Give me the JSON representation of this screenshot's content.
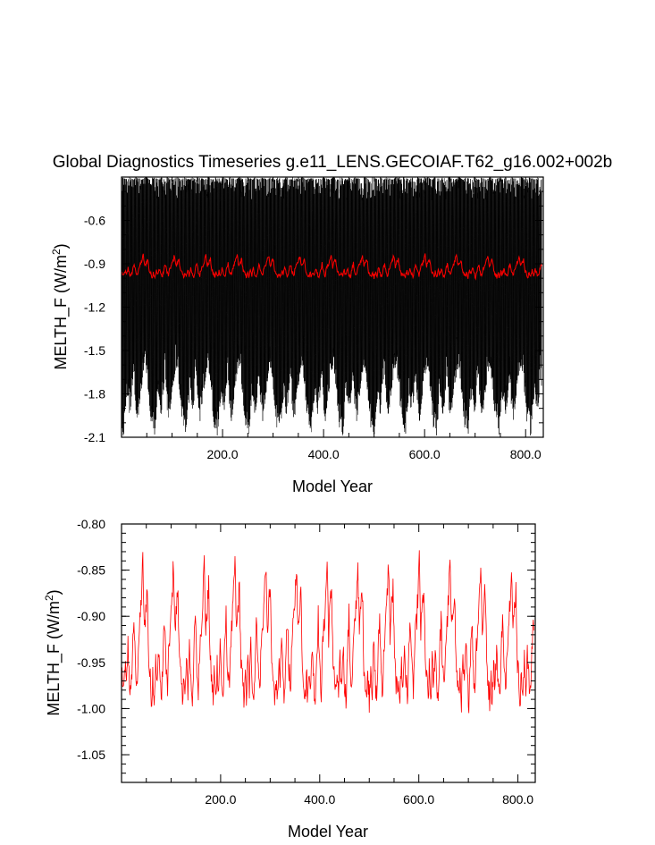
{
  "chart_data": [
    {
      "type": "line",
      "title": "Global Diagnostics Timeseries g.e11_LENS.GECOIAF.T62_g16.002+002b",
      "xlabel": "Model Year",
      "ylabel_main": "MELTH_F (W/m",
      "ylabel_sup": "2",
      "ylabel_close": ")",
      "xlim": [
        0,
        835
      ],
      "ylim": [
        -2.1,
        -0.3
      ],
      "xticks": [
        200,
        400,
        600,
        800
      ],
      "xtick_labels": [
        "200.0",
        "400.0",
        "600.0",
        "800.0"
      ],
      "yticks": [
        -2.1,
        -1.8,
        -1.5,
        -1.2,
        -0.9,
        -0.6
      ],
      "ytick_labels": [
        "-2.1",
        "-1.8",
        "-1.5",
        "-1.2",
        "-0.9",
        "-0.6"
      ],
      "grid": false,
      "cycle_years": 62,
      "series": [
        {
          "color": "#000000",
          "description_of_values": "monthly values, repeating 62-year forcing cycle",
          "cycle_profile_x": [
            0,
            4,
            8,
            12,
            16,
            20,
            24,
            28,
            32,
            36,
            40,
            44,
            48,
            52,
            56,
            60,
            62
          ],
          "cycle_profile_min": [
            -1.95,
            -2.05,
            -1.85,
            -1.75,
            -1.9,
            -1.8,
            -1.6,
            -1.85,
            -1.95,
            -1.8,
            -1.7,
            -1.6,
            -1.55,
            -1.7,
            -1.85,
            -2.0,
            -1.95
          ],
          "cycle_profile_max": [
            -0.32,
            -0.33,
            -0.33,
            -0.34,
            -0.32,
            -0.33,
            -0.34,
            -0.32,
            -0.33,
            -0.33,
            -0.34,
            -0.33,
            -0.32,
            -0.33,
            -0.34,
            -0.33,
            -0.32
          ]
        },
        {
          "color": "#ff0000",
          "description_of_values": "annual means, repeating 62-year forcing cycle",
          "cycle_profile_x": [
            0,
            3,
            6,
            9,
            12,
            15,
            18,
            21,
            24,
            27,
            30,
            33,
            36,
            39,
            42,
            45,
            48,
            51,
            54,
            57,
            60,
            62
          ],
          "cycle_profile_y": [
            -0.96,
            -0.99,
            -0.95,
            -0.98,
            -0.93,
            -0.97,
            -0.99,
            -0.94,
            -0.9,
            -0.96,
            -0.98,
            -0.93,
            -0.91,
            -0.88,
            -0.84,
            -0.92,
            -0.89,
            -0.87,
            -0.95,
            -0.97,
            -0.99,
            -0.96
          ]
        }
      ]
    },
    {
      "type": "line",
      "xlabel": "Model Year",
      "ylabel_main": "MELTH_F (W/m",
      "ylabel_sup": "2",
      "ylabel_close": ")",
      "xlim": [
        0,
        835
      ],
      "ylim": [
        -1.08,
        -0.8
      ],
      "xticks": [
        200,
        400,
        600,
        800
      ],
      "xtick_labels": [
        "200.0",
        "400.0",
        "600.0",
        "800.0"
      ],
      "yticks": [
        -1.05,
        -1.0,
        -0.95,
        -0.9,
        -0.85,
        -0.8
      ],
      "ytick_labels": [
        "-1.05",
        "-1.00",
        "-0.95",
        "-0.90",
        "-0.85",
        "-0.80"
      ],
      "grid": false,
      "series": [
        {
          "color": "#ff0000",
          "description_of_values": "annual means, zoomed view of red series above"
        }
      ]
    }
  ]
}
